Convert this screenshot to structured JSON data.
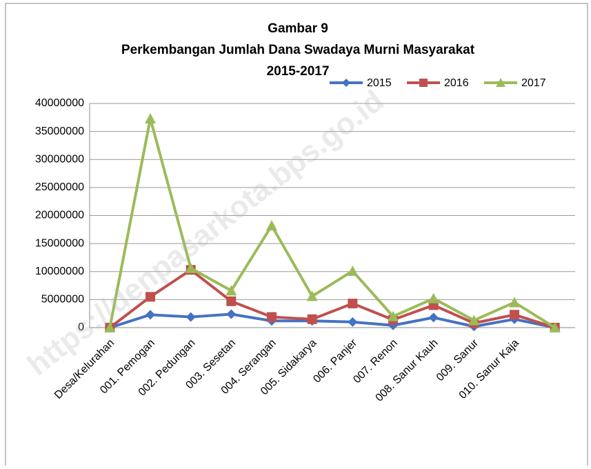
{
  "chart_data": {
    "type": "line",
    "title": [
      "Gambar 9",
      "Perkembangan Jumlah Dana Swadaya Murni Masyarakat",
      "2015-2017"
    ],
    "watermark": "https://denpasarkota.bps.go.id",
    "categories": [
      "Desa/Kelurahan",
      "001. Pemogan",
      "002. Pedungan",
      "003. Sesetan",
      "004. Serangan",
      "005. Sidakarya",
      "006. Panjer",
      "007. Renon",
      "008. Sanur Kauh",
      "009. Sanur",
      "010. Sanur Kaja",
      null
    ],
    "series": [
      {
        "name": "2015",
        "color": "#4472c4",
        "marker": "diamond",
        "values": [
          0,
          2300000,
          1900000,
          2400000,
          1200000,
          1200000,
          1000000,
          400000,
          1800000,
          200000,
          1500000,
          0
        ]
      },
      {
        "name": "2016",
        "color": "#c0504d",
        "marker": "square",
        "values": [
          0,
          5500000,
          10300000,
          4700000,
          1900000,
          1500000,
          4300000,
          1400000,
          4000000,
          800000,
          2300000,
          0
        ]
      },
      {
        "name": "2017",
        "color": "#9bbb59",
        "marker": "triangle",
        "values": [
          0,
          37300000,
          10600000,
          6600000,
          18200000,
          5600000,
          10100000,
          2000000,
          5200000,
          1300000,
          4500000,
          0
        ]
      }
    ],
    "ylim": [
      0,
      40000000
    ],
    "yticks": [
      0,
      5000000,
      10000000,
      15000000,
      20000000,
      25000000,
      30000000,
      35000000,
      40000000
    ],
    "grid": true,
    "legend": "top-right"
  }
}
